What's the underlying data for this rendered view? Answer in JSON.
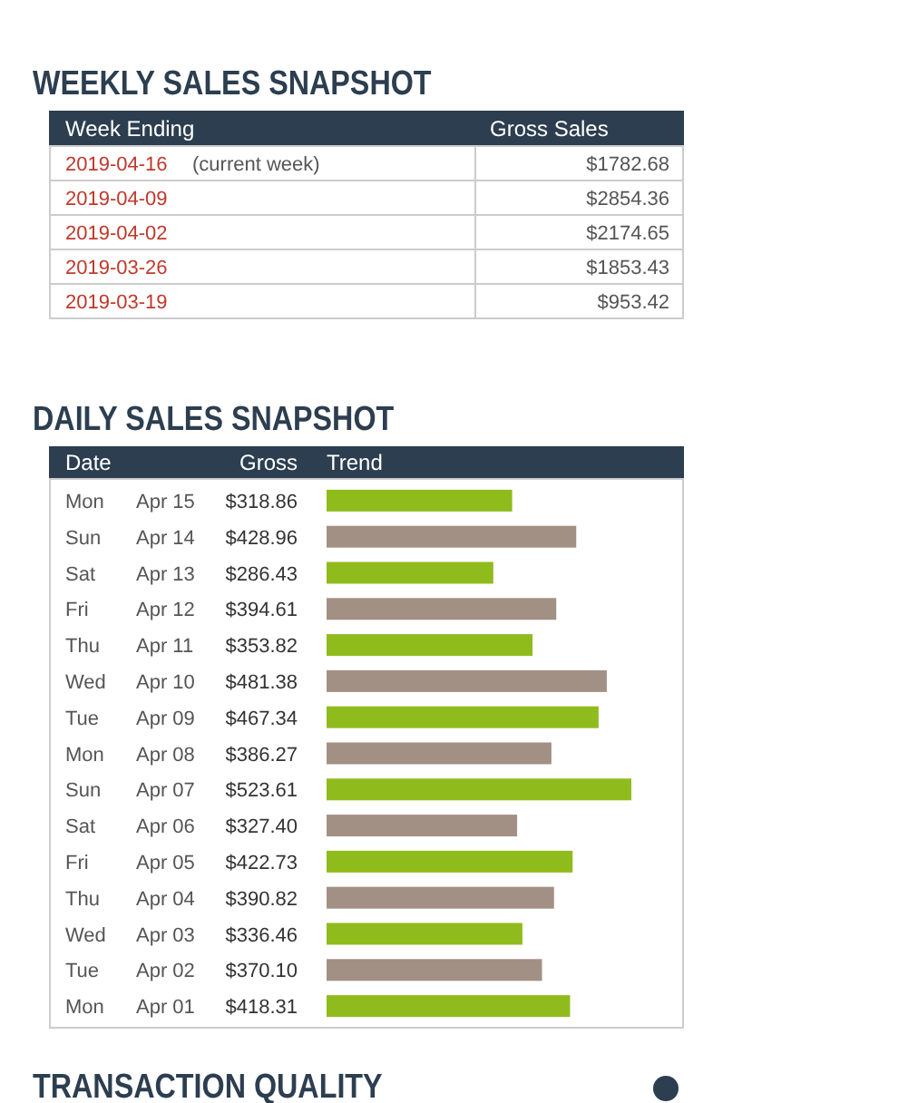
{
  "chart_data": [
    {
      "type": "other",
      "title": "WEEKLY SALES SNAPSHOT",
      "annotations": [
        "Week Ending",
        "Gross Sales",
        "(current week)"
      ],
      "categories": [
        "2019-04-16",
        "2019-04-09",
        "2019-04-02",
        "2019-03-26",
        "2019-03-19"
      ],
      "value_labels": [
        "$1782.68",
        "$2854.36",
        "$2174.65",
        "$1853.43",
        "$953.42"
      ]
    },
    {
      "type": "bar",
      "orientation": "horizontal",
      "title": "DAILY SALES SNAPSHOT",
      "annotations": [
        "Date",
        "Gross",
        "Trend"
      ],
      "categories": [
        "Mon Apr 15",
        "Sun Apr 14",
        "Sat Apr 13",
        "Fri Apr 12",
        "Thu Apr 11",
        "Wed Apr 10",
        "Tue Apr 09",
        "Mon Apr 08",
        "Sun Apr 07",
        "Sat Apr 06",
        "Fri Apr 05",
        "Thu Apr 04",
        "Wed Apr 03",
        "Tue Apr 02",
        "Mon Apr 01"
      ],
      "values": [
        318.86,
        428.96,
        286.43,
        394.61,
        353.82,
        481.38,
        467.34,
        386.27,
        523.61,
        327.4,
        422.73,
        390.82,
        336.46,
        370.1,
        418.31
      ],
      "value_labels": [
        "$318.86",
        "$428.96",
        "$286.43",
        "$394.61",
        "$353.82",
        "$481.38",
        "$467.34",
        "$386.27",
        "$523.61",
        "$327.40",
        "$422.73",
        "$390.82",
        "$336.46",
        "$370.10",
        "$418.31"
      ],
      "colors": [
        "#8fbc1c",
        "#a39085",
        "#8fbc1c",
        "#a39085",
        "#8fbc1c",
        "#a39085",
        "#8fbc1c",
        "#a39085",
        "#8fbc1c",
        "#a39085",
        "#8fbc1c",
        "#a39085",
        "#8fbc1c",
        "#a39085",
        "#8fbc1c"
      ]
    },
    {
      "type": "other",
      "title": "TRANSACTION QUALITY"
    }
  ]
}
